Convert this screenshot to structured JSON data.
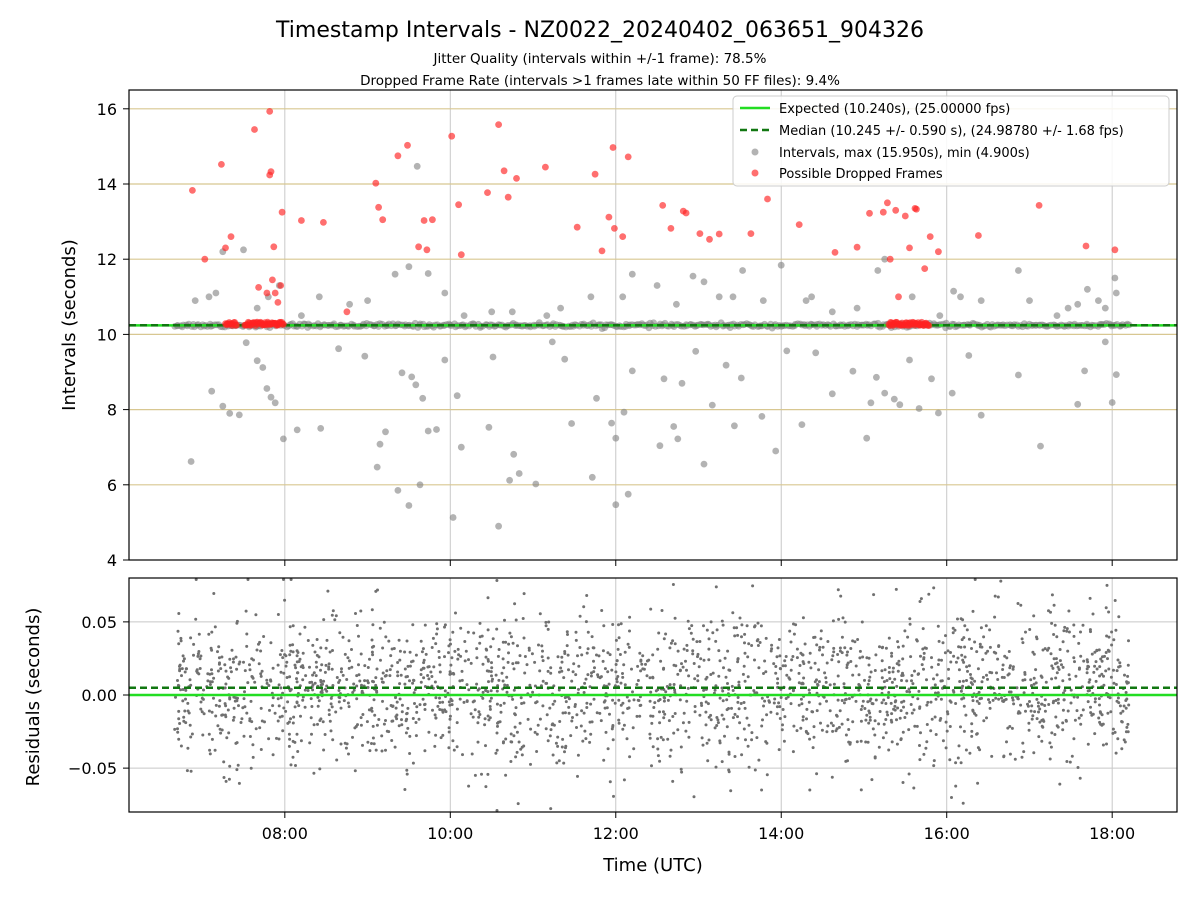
{
  "chart_data": [
    {
      "type": "scatter",
      "title": "Timestamp Intervals - NZ0022_20240402_063651_904326",
      "subtitle_lines": [
        "Jitter Quality (intervals within +/-1 frame): 78.5%",
        "Dropped Frame Rate (intervals >1 frames late within 50 FF files): 9.4%"
      ],
      "xlabel": "",
      "ylabel": "Intervals (seconds)",
      "xlim": [
        "06:07",
        "18:47"
      ],
      "ylim": [
        4,
        16.5
      ],
      "yticks": [
        4,
        6,
        8,
        10,
        12,
        14,
        16
      ],
      "ytick_labels": [
        "4",
        "6",
        "8",
        "10",
        "12",
        "14",
        "16"
      ],
      "grid": "horizontal lines at even y (tan), vertical lines at x ticks (gray)",
      "legend_position": "top-right",
      "series": [
        {
          "name": "Expected (10.240s), (25.00000 fps)",
          "kind": "hline",
          "y": 10.24,
          "color": "#22dd22",
          "style": "solid"
        },
        {
          "name": "Median (10.245 +/- 0.590 s), (24.98780 +/- 1.68 fps)",
          "kind": "hline",
          "y": 10.245,
          "color": "#117711",
          "style": "dashed"
        },
        {
          "name": "Intervals, max (15.950s), min (4.900s)",
          "kind": "scatter",
          "color": "#808080",
          "x_range": [
            "06:40",
            "18:12"
          ],
          "core_y": 10.24,
          "points": [
            [
              "06:52",
              6.62
            ],
            [
              "07:07",
              8.49
            ],
            [
              "07:15",
              8.09
            ],
            [
              "07:20",
              7.9
            ],
            [
              "07:27",
              7.86
            ],
            [
              "07:32",
              9.78
            ],
            [
              "07:40",
              9.3
            ],
            [
              "07:44",
              9.12
            ],
            [
              "07:47",
              8.56
            ],
            [
              "07:50",
              8.33
            ],
            [
              "07:53",
              8.18
            ],
            [
              "07:59",
              7.22
            ],
            [
              "08:09",
              7.46
            ],
            [
              "08:26",
              7.5
            ],
            [
              "08:39",
              9.62
            ],
            [
              "08:58",
              9.42
            ],
            [
              "09:07",
              6.47
            ],
            [
              "09:09",
              7.08
            ],
            [
              "09:13",
              7.41
            ],
            [
              "09:22",
              5.85
            ],
            [
              "09:25",
              8.98
            ],
            [
              "09:30",
              5.45
            ],
            [
              "09:32",
              8.87
            ],
            [
              "09:35",
              8.66
            ],
            [
              "09:38",
              6.0
            ],
            [
              "09:40",
              8.3
            ],
            [
              "09:44",
              7.43
            ],
            [
              "09:50",
              7.47
            ],
            [
              "09:56",
              9.32
            ],
            [
              "10:02",
              5.13
            ],
            [
              "10:05",
              8.37
            ],
            [
              "10:08",
              7.0
            ],
            [
              "10:28",
              7.53
            ],
            [
              "10:31",
              9.4
            ],
            [
              "10:35",
              4.9
            ],
            [
              "10:43",
              6.12
            ],
            [
              "10:46",
              6.81
            ],
            [
              "10:50",
              6.3
            ],
            [
              "11:02",
              6.02
            ],
            [
              "11:14",
              9.8
            ],
            [
              "11:23",
              9.34
            ],
            [
              "11:28",
              7.63
            ],
            [
              "11:43",
              6.2
            ],
            [
              "11:46",
              8.3
            ],
            [
              "11:57",
              7.64
            ],
            [
              "12:00",
              7.24
            ],
            [
              "12:00",
              5.47
            ],
            [
              "12:06",
              7.93
            ],
            [
              "12:09",
              5.75
            ],
            [
              "12:12",
              9.03
            ],
            [
              "12:32",
              7.04
            ],
            [
              "12:35",
              8.82
            ],
            [
              "12:42",
              7.55
            ],
            [
              "12:45",
              7.22
            ],
            [
              "12:48",
              8.7
            ],
            [
              "12:58",
              9.55
            ],
            [
              "13:04",
              6.55
            ],
            [
              "13:10",
              8.12
            ],
            [
              "13:20",
              9.18
            ],
            [
              "13:26",
              7.57
            ],
            [
              "13:31",
              8.84
            ],
            [
              "13:46",
              7.82
            ],
            [
              "13:56",
              6.9
            ],
            [
              "14:04",
              9.56
            ],
            [
              "14:15",
              7.6
            ],
            [
              "14:25",
              9.51
            ],
            [
              "14:37",
              8.42
            ],
            [
              "14:52",
              9.02
            ],
            [
              "15:02",
              7.24
            ],
            [
              "15:05",
              8.18
            ],
            [
              "15:09",
              8.86
            ],
            [
              "15:15",
              8.44
            ],
            [
              "15:22",
              8.28
            ],
            [
              "15:26",
              8.13
            ],
            [
              "15:33",
              9.32
            ],
            [
              "15:40",
              8.03
            ],
            [
              "15:49",
              8.82
            ],
            [
              "15:54",
              7.91
            ],
            [
              "16:04",
              8.44
            ],
            [
              "16:16",
              9.44
            ],
            [
              "16:25",
              7.85
            ],
            [
              "16:52",
              8.92
            ],
            [
              "17:08",
              7.03
            ],
            [
              "17:35",
              8.14
            ],
            [
              "17:40",
              9.03
            ],
            [
              "17:55",
              9.8
            ],
            [
              "18:00",
              8.19
            ],
            [
              "18:03",
              8.93
            ],
            [
              "06:55",
              10.9
            ],
            [
              "07:05",
              11.0
            ],
            [
              "07:10",
              11.1
            ],
            [
              "07:15",
              12.2
            ],
            [
              "07:30",
              12.25
            ],
            [
              "07:40",
              10.7
            ],
            [
              "07:48",
              11.0
            ],
            [
              "07:56",
              11.3
            ],
            [
              "08:12",
              10.5
            ],
            [
              "08:25",
              11.0
            ],
            [
              "08:47",
              10.8
            ],
            [
              "09:00",
              10.9
            ],
            [
              "09:20",
              11.6
            ],
            [
              "09:30",
              11.8
            ],
            [
              "09:36",
              14.47
            ],
            [
              "09:44",
              11.62
            ],
            [
              "09:56",
              11.1
            ],
            [
              "10:10",
              10.5
            ],
            [
              "10:30",
              10.6
            ],
            [
              "10:45",
              10.6
            ],
            [
              "11:10",
              10.5
            ],
            [
              "11:20",
              10.7
            ],
            [
              "11:42",
              11.0
            ],
            [
              "12:05",
              11.0
            ],
            [
              "12:12",
              11.6
            ],
            [
              "12:30",
              11.3
            ],
            [
              "12:44",
              10.8
            ],
            [
              "12:56",
              11.55
            ],
            [
              "13:04",
              11.4
            ],
            [
              "13:15",
              11.0
            ],
            [
              "13:25",
              11.0
            ],
            [
              "13:32",
              11.7
            ],
            [
              "13:47",
              10.9
            ],
            [
              "14:00",
              11.84
            ],
            [
              "14:18",
              10.9
            ],
            [
              "14:22",
              11.0
            ],
            [
              "14:37",
              10.6
            ],
            [
              "14:55",
              10.7
            ],
            [
              "15:10",
              11.7
            ],
            [
              "15:15",
              12.0
            ],
            [
              "15:35",
              11.0
            ],
            [
              "15:55",
              10.5
            ],
            [
              "16:05",
              11.15
            ],
            [
              "16:10",
              11.0
            ],
            [
              "16:25",
              10.9
            ],
            [
              "16:52",
              11.7
            ],
            [
              "17:00",
              10.9
            ],
            [
              "17:20",
              10.5
            ],
            [
              "17:28",
              10.7
            ],
            [
              "17:35",
              10.8
            ],
            [
              "17:42",
              11.2
            ],
            [
              "17:50",
              10.9
            ],
            [
              "17:55",
              10.7
            ],
            [
              "18:02",
              11.5
            ],
            [
              "18:03",
              11.1
            ]
          ]
        },
        {
          "name": "Possible Dropped Frames",
          "kind": "scatter",
          "color": "#ff2222",
          "cluster_y": 10.28,
          "clusters": [
            [
              "07:17",
              "07:25"
            ],
            [
              "07:31",
              "07:59"
            ],
            [
              "15:18",
              "15:47"
            ]
          ],
          "points": [
            [
              "06:53",
              13.83
            ],
            [
              "07:02",
              12.0
            ],
            [
              "07:14",
              14.52
            ],
            [
              "07:17",
              12.3
            ],
            [
              "07:21",
              12.6
            ],
            [
              "07:38",
              15.45
            ],
            [
              "07:41",
              11.25
            ],
            [
              "07:47",
              11.1
            ],
            [
              "07:49",
              15.93
            ],
            [
              "07:49",
              14.24
            ],
            [
              "07:50",
              14.33
            ],
            [
              "07:51",
              11.45
            ],
            [
              "07:52",
              12.33
            ],
            [
              "07:53",
              11.1
            ],
            [
              "07:55",
              10.85
            ],
            [
              "07:57",
              11.3
            ],
            [
              "07:58",
              13.25
            ],
            [
              "08:12",
              13.03
            ],
            [
              "08:28",
              12.98
            ],
            [
              "08:45",
              10.6
            ],
            [
              "09:06",
              14.02
            ],
            [
              "09:08",
              13.38
            ],
            [
              "09:11",
              13.05
            ],
            [
              "09:22",
              14.75
            ],
            [
              "09:29",
              15.03
            ],
            [
              "09:37",
              12.33
            ],
            [
              "09:41",
              13.03
            ],
            [
              "09:43",
              12.25
            ],
            [
              "09:47",
              13.05
            ],
            [
              "10:01",
              15.27
            ],
            [
              "10:06",
              13.45
            ],
            [
              "10:08",
              12.12
            ],
            [
              "10:27",
              13.77
            ],
            [
              "10:35",
              15.58
            ],
            [
              "10:39",
              14.35
            ],
            [
              "10:42",
              13.65
            ],
            [
              "10:48",
              14.15
            ],
            [
              "11:09",
              14.45
            ],
            [
              "11:32",
              12.85
            ],
            [
              "11:45",
              14.26
            ],
            [
              "11:50",
              12.22
            ],
            [
              "11:55",
              13.12
            ],
            [
              "11:58",
              14.97
            ],
            [
              "11:59",
              12.82
            ],
            [
              "12:05",
              12.6
            ],
            [
              "12:09",
              14.72
            ],
            [
              "12:34",
              13.43
            ],
            [
              "12:40",
              12.82
            ],
            [
              "12:49",
              13.28
            ],
            [
              "12:51",
              13.23
            ],
            [
              "13:01",
              12.68
            ],
            [
              "13:08",
              12.53
            ],
            [
              "13:15",
              12.67
            ],
            [
              "13:38",
              12.68
            ],
            [
              "13:50",
              13.6
            ],
            [
              "14:13",
              12.92
            ],
            [
              "14:39",
              12.18
            ],
            [
              "14:55",
              12.32
            ],
            [
              "15:04",
              13.22
            ],
            [
              "15:14",
              13.25
            ],
            [
              "15:17",
              13.5
            ],
            [
              "15:19",
              12.0
            ],
            [
              "15:23",
              13.3
            ],
            [
              "15:25",
              11.0
            ],
            [
              "15:30",
              13.15
            ],
            [
              "15:33",
              12.3
            ],
            [
              "15:37",
              13.35
            ],
            [
              "15:38",
              13.33
            ],
            [
              "15:44",
              11.75
            ],
            [
              "15:48",
              12.6
            ],
            [
              "15:54",
              12.2
            ],
            [
              "16:23",
              12.63
            ],
            [
              "17:07",
              13.43
            ],
            [
              "17:41",
              12.35
            ],
            [
              "18:02",
              12.25
            ]
          ]
        }
      ]
    },
    {
      "type": "scatter",
      "title": "",
      "xlabel": "Time (UTC)",
      "ylabel": "Residuals (seconds)",
      "xlim": [
        "06:07",
        "18:47"
      ],
      "ylim": [
        -0.08,
        0.08
      ],
      "xticks": [
        "08:00",
        "10:00",
        "12:00",
        "14:00",
        "16:00",
        "18:00"
      ],
      "xtick_labels": [
        "08:00",
        "10:00",
        "12:00",
        "14:00",
        "16:00",
        "18:00"
      ],
      "yticks": [
        -0.05,
        0.0,
        0.05
      ],
      "ytick_labels": [
        "−0.05",
        "0.00",
        "0.05"
      ],
      "grid": "both",
      "series": [
        {
          "kind": "hline",
          "y": 0.0,
          "color": "#22dd22",
          "style": "solid"
        },
        {
          "kind": "hline",
          "y": 0.005,
          "color": "#117711",
          "style": "dashed"
        },
        {
          "kind": "scatter",
          "color": "#707070",
          "x_range": [
            "06:40",
            "18:12"
          ],
          "y_range": [
            -0.08,
            0.08
          ],
          "typical_spread": 0.045
        }
      ]
    }
  ]
}
